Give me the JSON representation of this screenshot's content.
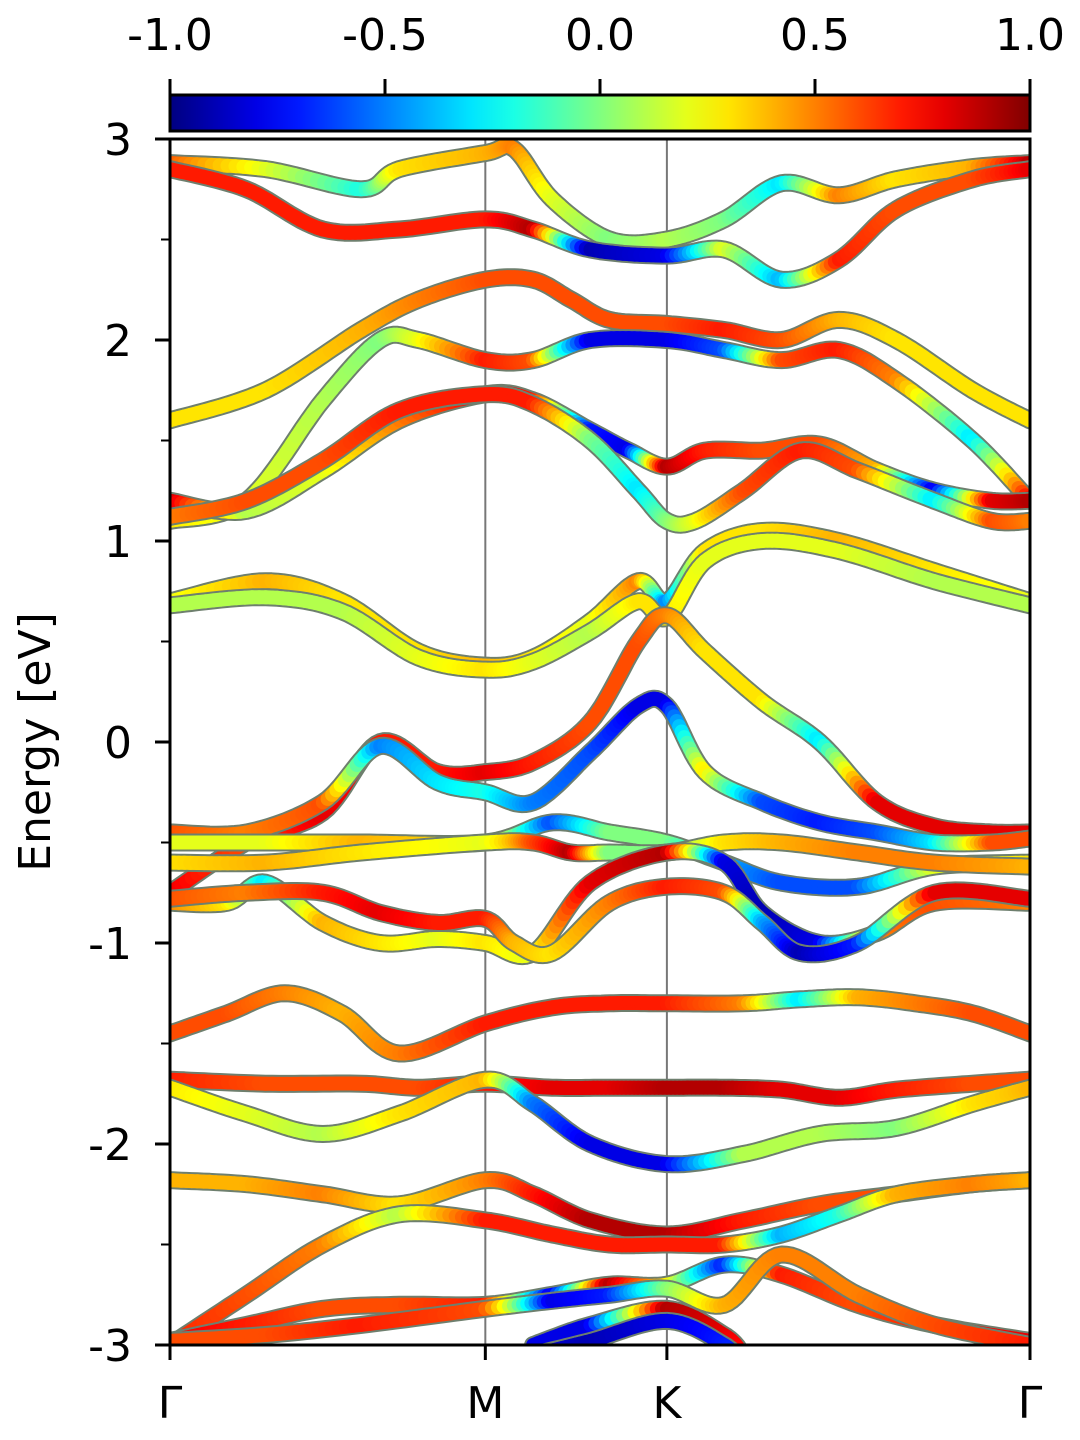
{
  "chart_data": {
    "type": "line",
    "title": "",
    "xlabel": "",
    "ylabel": "Energy [eV]",
    "ylim": [
      -3,
      3
    ],
    "xlim": [
      0,
      4.5
    ],
    "yticks": [
      -3,
      -2,
      -1,
      0,
      1,
      2,
      3
    ],
    "ytick_labels": [
      "-3",
      "-2",
      "-1",
      "0",
      "1",
      "2",
      "3"
    ],
    "yticks_minor": [
      -2.5,
      -1.5,
      -0.5,
      0.5,
      1.5,
      2.5
    ],
    "kpath": {
      "positions": [
        0,
        1.65,
        2.6,
        4.5
      ],
      "labels": [
        "Γ",
        "M",
        "K",
        "Γ"
      ],
      "vlines": [
        1.65,
        2.6
      ]
    },
    "colorbar": {
      "range": [
        -1.0,
        1.0
      ],
      "ticks": [
        -1.0,
        -0.5,
        0.0,
        0.5,
        1.0
      ],
      "tick_labels": [
        "-1.0",
        "-0.5",
        "0.0",
        "0.5",
        "1.0"
      ],
      "colormap": "jet",
      "placement": "top"
    },
    "grid": false,
    "legend": "none",
    "series": [
      {
        "x": [
          0,
          0.5,
          1.0,
          1.2,
          1.65,
          1.8,
          2.0,
          2.3,
          2.6,
          2.9,
          3.2,
          3.5,
          3.8,
          4.2,
          4.5
        ],
        "y": [
          2.88,
          2.85,
          2.75,
          2.85,
          2.93,
          2.95,
          2.7,
          2.5,
          2.5,
          2.6,
          2.78,
          2.72,
          2.8,
          2.86,
          2.88
        ],
        "c": [
          0.6,
          0.2,
          -0.2,
          0.3,
          0.4,
          0.5,
          0.2,
          0.0,
          0.1,
          0.0,
          -0.3,
          0.5,
          0.3,
          0.4,
          0.9
        ]
      },
      {
        "x": [
          0,
          0.4,
          0.8,
          1.2,
          1.65,
          1.9,
          2.2,
          2.6,
          2.9,
          3.2,
          3.5,
          3.8,
          4.2,
          4.5
        ],
        "y": [
          2.85,
          2.75,
          2.55,
          2.55,
          2.6,
          2.55,
          2.45,
          2.42,
          2.45,
          2.3,
          2.4,
          2.65,
          2.8,
          2.85
        ],
        "c": [
          0.7,
          0.7,
          0.7,
          0.7,
          0.7,
          0.9,
          -0.9,
          -0.8,
          0.2,
          -0.4,
          0.7,
          0.6,
          0.6,
          0.8
        ]
      },
      {
        "x": [
          0,
          0.5,
          1.0,
          1.3,
          1.65,
          1.9,
          2.1,
          2.3,
          2.6,
          2.9,
          3.2,
          3.5,
          3.8,
          4.2,
          4.5
        ],
        "y": [
          1.6,
          1.75,
          2.05,
          2.2,
          2.3,
          2.3,
          2.2,
          2.1,
          2.08,
          2.05,
          2.0,
          2.1,
          2.0,
          1.75,
          1.6
        ],
        "c": [
          0.3,
          0.3,
          0.4,
          0.5,
          0.6,
          0.6,
          0.6,
          0.6,
          0.6,
          0.7,
          0.6,
          0.4,
          0.3,
          0.3,
          0.3
        ]
      },
      {
        "x": [
          0,
          0.4,
          0.8,
          1.1,
          1.3,
          1.65,
          1.9,
          2.2,
          2.6,
          2.9,
          3.2,
          3.5,
          3.8,
          4.2,
          4.5
        ],
        "y": [
          1.1,
          1.2,
          1.7,
          2.0,
          2.0,
          1.9,
          1.9,
          2.0,
          2.0,
          1.95,
          1.9,
          1.95,
          1.8,
          1.5,
          1.2
        ],
        "c": [
          0.3,
          0.2,
          0.1,
          0.0,
          0.2,
          0.7,
          0.6,
          -0.8,
          -0.8,
          -0.6,
          0.6,
          0.7,
          0.5,
          -0.3,
          0.8
        ]
      },
      {
        "x": [
          0,
          0.4,
          0.8,
          1.2,
          1.65,
          1.9,
          2.2,
          2.4,
          2.6,
          2.8,
          3.1,
          3.4,
          3.7,
          4.0,
          4.3,
          4.5
        ],
        "y": [
          1.2,
          1.15,
          1.35,
          1.6,
          1.73,
          1.7,
          1.55,
          1.45,
          1.37,
          1.45,
          1.45,
          1.48,
          1.35,
          1.25,
          1.2,
          1.2
        ],
        "c": [
          0.9,
          0.1,
          0.2,
          0.5,
          0.8,
          0.7,
          -0.7,
          -0.8,
          0.9,
          0.7,
          0.6,
          0.6,
          0.4,
          -0.8,
          0.8,
          0.9
        ]
      },
      {
        "x": [
          0,
          0.4,
          0.8,
          1.2,
          1.65,
          1.9,
          2.2,
          2.45,
          2.6,
          2.75,
          3.0,
          3.3,
          3.6,
          4.0,
          4.3,
          4.5
        ],
        "y": [
          1.12,
          1.2,
          1.4,
          1.65,
          1.73,
          1.68,
          1.5,
          1.25,
          1.1,
          1.1,
          1.25,
          1.45,
          1.35,
          1.2,
          1.1,
          1.1
        ],
        "c": [
          0.5,
          0.6,
          0.6,
          0.7,
          0.7,
          0.7,
          0.0,
          -0.3,
          0.0,
          0.2,
          0.6,
          0.7,
          0.6,
          -0.3,
          0.6,
          0.5
        ]
      },
      {
        "x": [
          0,
          0.5,
          0.9,
          1.3,
          1.65,
          1.9,
          2.2,
          2.45,
          2.6,
          2.8,
          3.1,
          3.5,
          4.0,
          4.5
        ],
        "y": [
          0.7,
          0.8,
          0.7,
          0.45,
          0.38,
          0.42,
          0.6,
          0.8,
          0.7,
          0.95,
          1.05,
          1.0,
          0.85,
          0.7
        ],
        "c": [
          0.2,
          0.4,
          0.3,
          0.3,
          0.4,
          0.3,
          0.2,
          0.5,
          -0.5,
          0.3,
          0.3,
          0.4,
          0.3,
          0.2
        ]
      },
      {
        "x": [
          0,
          0.5,
          0.9,
          1.3,
          1.65,
          1.9,
          2.2,
          2.45,
          2.6,
          2.8,
          3.1,
          3.5,
          4.0,
          4.5
        ],
        "y": [
          0.68,
          0.72,
          0.65,
          0.42,
          0.36,
          0.4,
          0.55,
          0.7,
          0.62,
          0.9,
          1.0,
          0.95,
          0.8,
          0.68
        ],
        "c": [
          0.1,
          0.1,
          0.1,
          0.2,
          0.3,
          0.2,
          0.1,
          0.3,
          0.3,
          0.2,
          0.2,
          0.2,
          0.1,
          0.1
        ]
      },
      {
        "x": [
          0,
          0.4,
          0.8,
          1.1,
          1.4,
          1.65,
          1.9,
          2.2,
          2.45,
          2.6,
          2.8,
          3.1,
          3.4,
          3.7,
          4.0,
          4.3,
          4.5
        ],
        "y": [
          -0.75,
          -0.5,
          -0.35,
          0.0,
          -0.15,
          -0.15,
          -0.1,
          0.1,
          0.5,
          0.63,
          0.45,
          0.2,
          0.0,
          -0.3,
          -0.42,
          -0.45,
          -0.45
        ],
        "c": [
          0.8,
          0.6,
          0.8,
          0.7,
          0.7,
          0.8,
          0.7,
          0.6,
          0.6,
          0.5,
          0.3,
          0.3,
          -0.3,
          0.8,
          0.8,
          0.8,
          0.8
        ]
      },
      {
        "x": [
          0,
          0.4,
          0.8,
          1.1,
          1.4,
          1.65,
          1.9,
          2.2,
          2.45,
          2.6,
          2.8,
          3.1,
          3.4,
          3.7,
          4.0,
          4.3,
          4.5
        ],
        "y": [
          -0.45,
          -0.45,
          -0.3,
          -0.02,
          -0.2,
          -0.25,
          -0.3,
          -0.05,
          0.18,
          0.18,
          -0.15,
          -0.3,
          -0.4,
          -0.45,
          -0.5,
          -0.5,
          -0.48
        ],
        "c": [
          0.6,
          0.5,
          0.6,
          -0.5,
          -0.3,
          -0.2,
          -0.5,
          -0.6,
          -0.8,
          -0.8,
          0.3,
          -0.6,
          -0.7,
          -0.6,
          -0.3,
          0.6,
          0.6
        ]
      },
      {
        "x": [
          0,
          0.5,
          1.0,
          1.65,
          2.0,
          2.3,
          2.6,
          2.9,
          3.2,
          3.6,
          4.0,
          4.5
        ],
        "y": [
          -0.5,
          -0.5,
          -0.5,
          -0.5,
          -0.4,
          -0.45,
          -0.5,
          -0.6,
          -0.7,
          -0.72,
          -0.62,
          -0.6
        ],
        "c": [
          0.2,
          0.2,
          0.4,
          0.3,
          -0.6,
          0.0,
          0.0,
          -0.4,
          -0.6,
          -0.6,
          0.2,
          0.3
        ]
      },
      {
        "x": [
          0,
          0.5,
          1.0,
          1.65,
          1.9,
          2.1,
          2.3,
          2.6,
          2.9,
          3.2,
          3.6,
          4.0,
          4.5
        ],
        "y": [
          -0.6,
          -0.6,
          -0.55,
          -0.5,
          -0.5,
          -0.55,
          -0.55,
          -0.55,
          -0.5,
          -0.5,
          -0.55,
          -0.6,
          -0.62
        ],
        "c": [
          0.3,
          0.4,
          0.3,
          0.2,
          0.6,
          0.9,
          0.0,
          0.0,
          0.3,
          0.4,
          0.5,
          0.5,
          0.4
        ]
      },
      {
        "x": [
          0,
          0.3,
          0.5,
          0.8,
          1.1,
          1.4,
          1.65,
          1.9,
          2.2,
          2.6,
          2.9,
          3.1,
          3.4,
          3.7,
          4.0,
          4.5
        ],
        "y": [
          -0.8,
          -0.8,
          -0.7,
          -0.9,
          -1.0,
          -0.98,
          -1.0,
          -1.05,
          -0.7,
          -0.55,
          -0.6,
          -0.85,
          -1.0,
          -0.95,
          -0.8,
          -0.8
        ],
        "c": [
          0.5,
          0.3,
          -0.3,
          0.4,
          0.3,
          0.2,
          0.3,
          0.2,
          0.8,
          0.9,
          -0.8,
          -0.9,
          -0.8,
          0.5,
          0.6,
          0.5
        ]
      },
      {
        "x": [
          0,
          0.4,
          0.8,
          1.1,
          1.4,
          1.65,
          1.8,
          2.0,
          2.3,
          2.6,
          2.9,
          3.1,
          3.3,
          3.6,
          4.0,
          4.5
        ],
        "y": [
          -0.78,
          -0.75,
          -0.75,
          -0.85,
          -0.9,
          -0.88,
          -1.0,
          -1.05,
          -0.8,
          -0.72,
          -0.75,
          -0.9,
          -1.05,
          -1.0,
          -0.75,
          -0.78
        ],
        "c": [
          0.6,
          0.5,
          0.7,
          0.8,
          0.7,
          0.7,
          0.4,
          0.3,
          0.5,
          0.7,
          0.6,
          -0.4,
          -0.9,
          -0.7,
          0.8,
          0.8
        ]
      },
      {
        "x": [
          0,
          0.3,
          0.6,
          0.9,
          1.2,
          1.65,
          2.0,
          2.3,
          2.6,
          3.0,
          3.3,
          3.6,
          3.9,
          4.2,
          4.5
        ],
        "y": [
          -1.45,
          -1.35,
          -1.25,
          -1.35,
          -1.55,
          -1.4,
          -1.32,
          -1.3,
          -1.3,
          -1.3,
          -1.28,
          -1.27,
          -1.3,
          -1.35,
          -1.45
        ],
        "c": [
          0.6,
          0.6,
          0.5,
          0.4,
          0.5,
          0.7,
          0.7,
          0.7,
          0.7,
          0.5,
          -0.3,
          0.4,
          0.5,
          0.6,
          0.6
        ]
      },
      {
        "x": [
          0,
          0.5,
          1.0,
          1.3,
          1.65,
          2.0,
          2.3,
          2.6,
          2.9,
          3.2,
          3.5,
          3.8,
          4.2,
          4.5
        ],
        "y": [
          -1.68,
          -1.7,
          -1.7,
          -1.72,
          -1.7,
          -1.72,
          -1.72,
          -1.72,
          -1.72,
          -1.73,
          -1.77,
          -1.73,
          -1.7,
          -1.68
        ],
        "c": [
          0.7,
          0.6,
          0.6,
          0.6,
          0.7,
          0.8,
          0.8,
          0.9,
          0.9,
          0.8,
          0.8,
          0.7,
          0.6,
          0.6
        ]
      },
      {
        "x": [
          0,
          0.4,
          0.8,
          1.2,
          1.65,
          1.9,
          2.2,
          2.6,
          3.0,
          3.4,
          3.8,
          4.2,
          4.5
        ],
        "y": [
          -1.72,
          -1.85,
          -1.95,
          -1.85,
          -1.68,
          -1.8,
          -2.0,
          -2.1,
          -2.05,
          -1.95,
          -1.92,
          -1.8,
          -1.72
        ],
        "c": [
          0.3,
          0.2,
          0.1,
          0.3,
          0.4,
          -0.5,
          -0.8,
          -0.8,
          0.1,
          0.1,
          0.0,
          0.3,
          0.4
        ]
      },
      {
        "x": [
          0,
          0.4,
          0.8,
          1.2,
          1.65,
          1.9,
          2.2,
          2.6,
          3.0,
          3.4,
          3.8,
          4.2,
          4.5
        ],
        "y": [
          -2.18,
          -2.2,
          -2.25,
          -2.3,
          -2.18,
          -2.25,
          -2.38,
          -2.45,
          -2.38,
          -2.3,
          -2.25,
          -2.2,
          -2.18
        ],
        "c": [
          0.4,
          0.4,
          0.5,
          0.3,
          0.5,
          0.7,
          0.9,
          0.9,
          0.7,
          0.6,
          0.6,
          0.5,
          0.4
        ]
      },
      {
        "x": [
          0,
          0.4,
          0.8,
          1.2,
          1.65,
          2.0,
          2.3,
          2.6,
          2.9,
          3.2,
          3.5,
          3.8,
          4.2,
          4.5
        ],
        "y": [
          -3.0,
          -2.75,
          -2.5,
          -2.35,
          -2.38,
          -2.45,
          -2.5,
          -2.5,
          -2.5,
          -2.45,
          -2.35,
          -2.25,
          -2.2,
          -2.18
        ],
        "c": [
          0.7,
          0.6,
          0.5,
          0.1,
          0.7,
          0.7,
          0.7,
          0.7,
          0.7,
          -0.4,
          -0.2,
          0.4,
          0.5,
          0.4
        ]
      },
      {
        "x": [
          0,
          0.4,
          0.8,
          1.2,
          1.65,
          2.0,
          2.3,
          2.6,
          2.9,
          3.2,
          3.6,
          4.0,
          4.5
        ],
        "y": [
          -2.98,
          -2.9,
          -2.82,
          -2.8,
          -2.8,
          -2.75,
          -2.7,
          -2.7,
          -2.6,
          -2.65,
          -2.8,
          -2.9,
          -2.98
        ],
        "c": [
          0.8,
          0.7,
          0.6,
          0.6,
          0.7,
          -0.8,
          0.9,
          0.3,
          -0.7,
          0.7,
          0.6,
          0.7,
          0.8
        ]
      },
      {
        "x": [
          0,
          0.5,
          1.0,
          1.65,
          2.0,
          2.3,
          2.6,
          2.9,
          3.2,
          3.6,
          4.0,
          4.5
        ],
        "y": [
          -2.98,
          -2.95,
          -2.9,
          -2.82,
          -2.78,
          -2.75,
          -2.72,
          -2.8,
          -2.55,
          -2.75,
          -2.9,
          -3.0
        ],
        "c": [
          0.6,
          0.6,
          0.7,
          0.6,
          -0.8,
          -0.7,
          0.0,
          0.4,
          0.5,
          0.5,
          0.6,
          0.7
        ]
      },
      {
        "x": [
          1.9,
          2.2,
          2.6,
          2.9,
          3.0
        ],
        "y": [
          -3.0,
          -2.9,
          -2.82,
          -2.95,
          -3.05
        ],
        "c": [
          -0.8,
          -0.8,
          0.9,
          0.8,
          0.7
        ]
      },
      {
        "x": [
          1.9,
          2.2,
          2.6,
          2.9,
          3.0
        ],
        "y": [
          -3.05,
          -2.98,
          -2.88,
          -3.0,
          -3.1
        ],
        "c": [
          -0.8,
          -0.9,
          -0.8,
          -0.7,
          -0.6
        ]
      }
    ]
  }
}
